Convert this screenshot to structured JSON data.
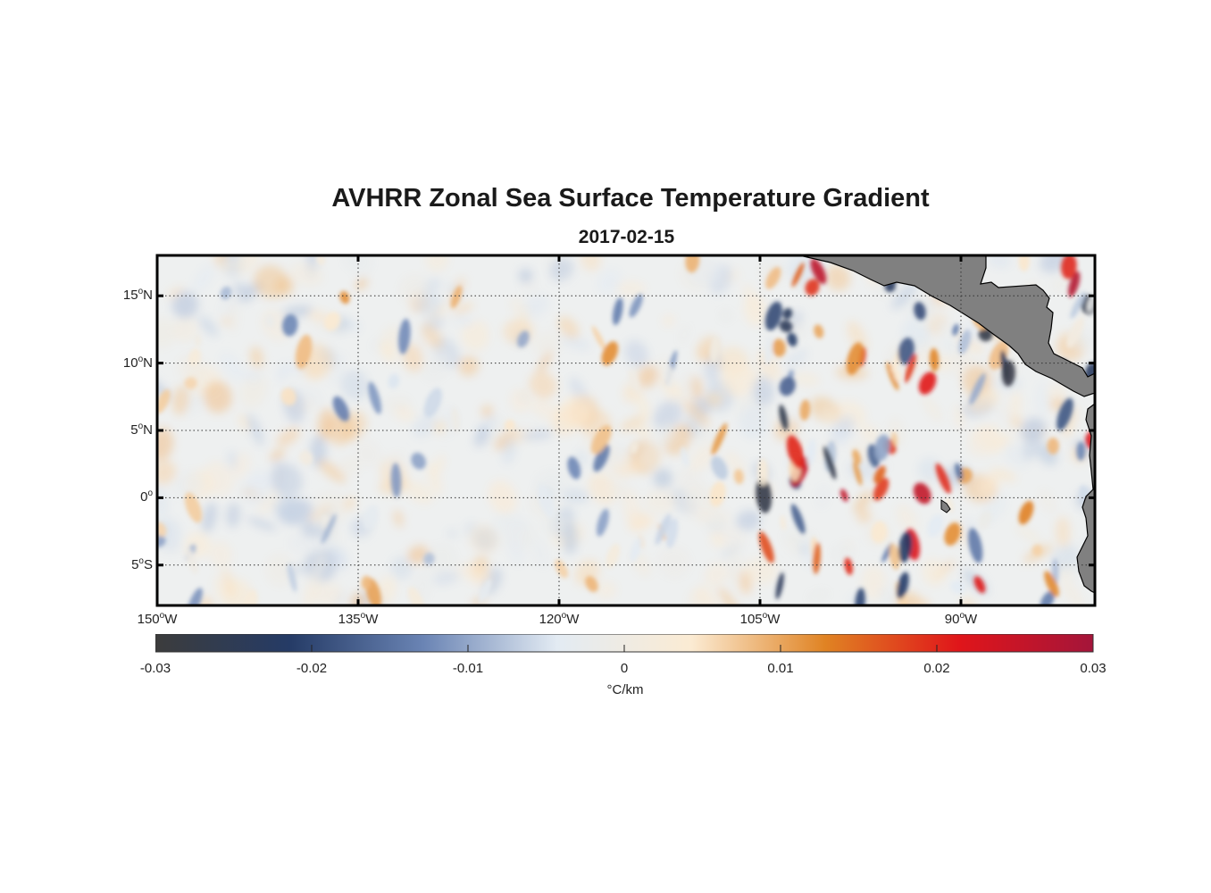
{
  "title": "AVHRR Zonal Sea Surface Temperature Gradient",
  "subtitle": "2017-02-15",
  "map": {
    "lon_range": [
      -150,
      -80
    ],
    "lat_range": [
      -8,
      18
    ],
    "lat_ticks": [
      {
        "value": 15,
        "num": "15",
        "hemi": "N"
      },
      {
        "value": 10,
        "num": "10",
        "hemi": "N"
      },
      {
        "value": 5,
        "num": "5",
        "hemi": "N"
      },
      {
        "value": 0,
        "num": "0",
        "hemi": ""
      },
      {
        "value": -5,
        "num": "5",
        "hemi": "S"
      }
    ],
    "lon_ticks": [
      {
        "value": -150,
        "num": "150",
        "hemi": "W"
      },
      {
        "value": -135,
        "num": "135",
        "hemi": "W"
      },
      {
        "value": -120,
        "num": "120",
        "hemi": "W"
      },
      {
        "value": -105,
        "num": "105",
        "hemi": "W"
      },
      {
        "value": -90,
        "num": "90",
        "hemi": "W"
      }
    ],
    "land_color": "#808080",
    "grid": true
  },
  "colorbar": {
    "min": -0.03,
    "max": 0.03,
    "tick_labels": [
      "-0.03",
      "-0.02",
      "-0.01",
      "0",
      "0.01",
      "0.02",
      "0.03"
    ],
    "unit": "°C/km",
    "colors": [
      "#3c3c3c",
      "#253b66",
      "#6a84b4",
      "#e3ebf3",
      "#fbebd3",
      "#e08323",
      "#e0151a",
      "#a4153a"
    ]
  }
}
